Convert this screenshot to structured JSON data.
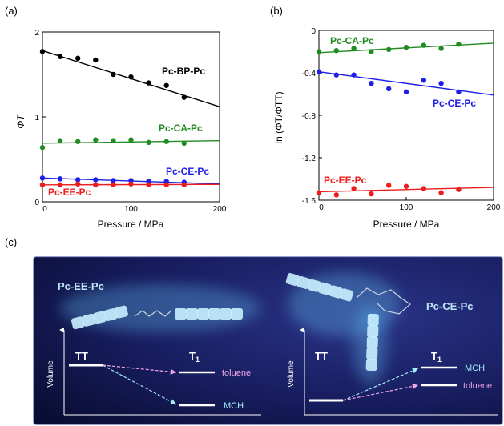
{
  "panel_labels": [
    "(a)",
    "(b)",
    "(c)"
  ],
  "chart_data": [
    {
      "type": "scatter",
      "panel": "(a)",
      "xlabel": "Pressure / MPa",
      "ylabel": "ΦT",
      "xlim": [
        0,
        200
      ],
      "ylim": [
        0,
        2
      ],
      "xticks": [
        "0",
        "100",
        "200"
      ],
      "yticks": [
        "0",
        "1",
        "2"
      ],
      "grid": false,
      "series": [
        {
          "name": "Pc-BP-Pc",
          "color": "#000000",
          "x": [
            0,
            20,
            40,
            60,
            80,
            100,
            120,
            140,
            160
          ],
          "y": [
            1.77,
            1.71,
            1.69,
            1.67,
            1.5,
            1.47,
            1.4,
            1.37,
            1.23
          ],
          "fit": [
            [
              0,
              1.78
            ],
            [
              200,
              1.12
            ]
          ]
        },
        {
          "name": "Pc-CA-Pc",
          "color": "#228b22",
          "x": [
            0,
            20,
            40,
            60,
            80,
            100,
            120,
            140,
            160
          ],
          "y": [
            0.64,
            0.72,
            0.71,
            0.73,
            0.72,
            0.73,
            0.7,
            0.71,
            0.69
          ],
          "fit": [
            [
              0,
              0.69
            ],
            [
              200,
              0.72
            ]
          ]
        },
        {
          "name": "Pc-CE-Pc",
          "color": "#1e1ee6",
          "x": [
            0,
            20,
            40,
            60,
            80,
            100,
            120,
            140,
            160
          ],
          "y": [
            0.28,
            0.27,
            0.26,
            0.26,
            0.25,
            0.25,
            0.24,
            0.24,
            0.23
          ],
          "fit": [
            [
              0,
              0.28
            ],
            [
              200,
              0.21
            ]
          ]
        },
        {
          "name": "Pc-EE-Pc",
          "color": "#ee1c1c",
          "x": [
            0,
            20,
            40,
            60,
            80,
            100,
            120,
            140,
            160
          ],
          "y": [
            0.2,
            0.2,
            0.21,
            0.2,
            0.2,
            0.21,
            0.2,
            0.2,
            0.2
          ],
          "fit": [
            [
              0,
              0.2
            ],
            [
              200,
              0.205
            ]
          ]
        }
      ]
    },
    {
      "type": "scatter",
      "panel": "(b)",
      "xlabel": "Pressure / MPa",
      "ylabel": "ln (ΦT/ΦTT)",
      "xlim": [
        0,
        200
      ],
      "ylim": [
        -1.6,
        0
      ],
      "xticks": [
        "0",
        "100",
        "200"
      ],
      "yticks": [
        "0",
        "-0.4",
        "-0.8",
        "-1.2",
        "-1.6"
      ],
      "grid": false,
      "series": [
        {
          "name": "Pc-CA-Pc",
          "color": "#228b22",
          "x": [
            0,
            20,
            40,
            60,
            80,
            100,
            120,
            140,
            160
          ],
          "y": [
            -0.2,
            -0.19,
            -0.17,
            -0.2,
            -0.18,
            -0.16,
            -0.14,
            -0.17,
            -0.13
          ],
          "fit": [
            [
              0,
              -0.21
            ],
            [
              200,
              -0.12
            ]
          ]
        },
        {
          "name": "Pc-CE-Pc",
          "color": "#1e1ee6",
          "x": [
            0,
            20,
            40,
            60,
            80,
            100,
            120,
            140,
            160
          ],
          "y": [
            -0.39,
            -0.42,
            -0.42,
            -0.5,
            -0.55,
            -0.58,
            -0.47,
            -0.5,
            -0.58
          ],
          "fit": [
            [
              0,
              -0.39
            ],
            [
              200,
              -0.61
            ]
          ]
        },
        {
          "name": "Pc-EE-Pc",
          "color": "#ee1c1c",
          "x": [
            0,
            20,
            40,
            60,
            80,
            100,
            120,
            140,
            160
          ],
          "y": [
            -1.53,
            -1.55,
            -1.49,
            -1.54,
            -1.46,
            -1.47,
            -1.49,
            -1.53,
            -1.5
          ],
          "fit": [
            [
              0,
              -1.52
            ],
            [
              200,
              -1.48
            ]
          ]
        }
      ]
    }
  ],
  "panel_c": {
    "left": {
      "molecule": "Pc-EE-Pc",
      "initial_state": "TT",
      "final_state_main": "T",
      "final_state_sub": "1",
      "axis_label": "Volume",
      "upper_solvent": "toluene",
      "lower_solvent": "MCH"
    },
    "right": {
      "molecule": "Pc-CE-Pc",
      "initial_state": "TT",
      "final_state_main": "T",
      "final_state_sub": "1",
      "axis_label": "Volume",
      "upper_solvent": "MCH",
      "lower_solvent": "toluene"
    },
    "colors": {
      "toluene": "#f2a6e6",
      "mch": "#a6ecf7",
      "background": "#141a55"
    }
  }
}
